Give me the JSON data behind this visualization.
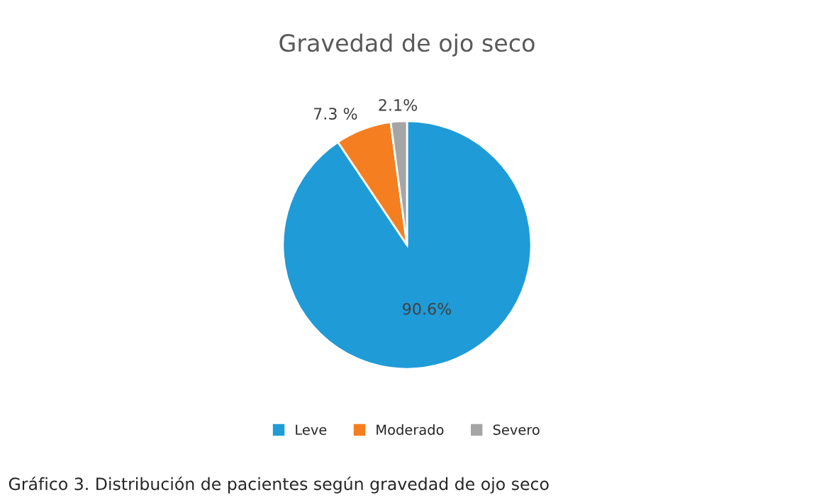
{
  "chart_data": {
    "type": "pie",
    "title": "Gravedad de ojo seco",
    "categories": [
      "Leve",
      "Moderado",
      "Severo"
    ],
    "values": [
      90.6,
      7.3,
      2.1
    ],
    "colors": [
      "#1f9bd7",
      "#f57e20",
      "#a5a5a5"
    ],
    "value_labels": [
      "90.6%",
      "7.3 %",
      "2.1%"
    ],
    "legend": "bottom",
    "annotations": [
      "Gráfico 3. Distribución de pacientes según gravedad de ojo seco"
    ]
  }
}
